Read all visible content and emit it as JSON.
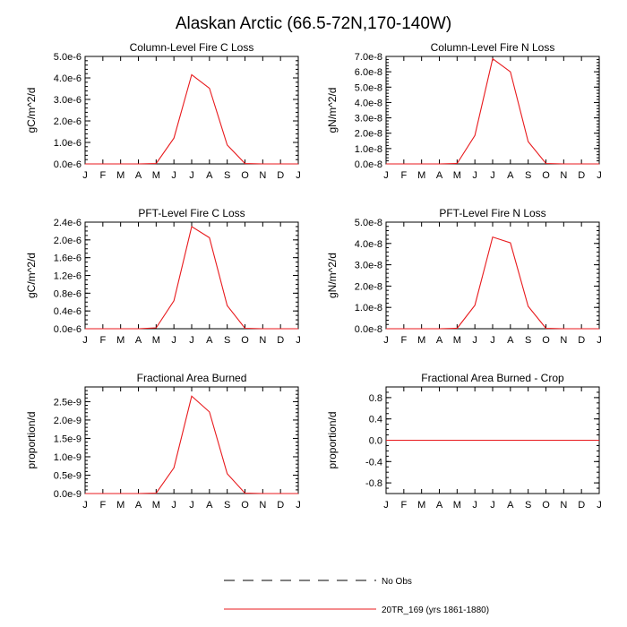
{
  "figure": {
    "title": "Alaskan Arctic (66.5-72N,170-140W)",
    "series_color": "#e8191c",
    "axis_color": "#000000"
  },
  "legend": {
    "items": [
      {
        "label": "No Obs",
        "style": "dashed",
        "color": "#000000"
      },
      {
        "label": "20TR_169 (yrs 1861-1880)",
        "style": "solid",
        "color": "#e8191c"
      }
    ]
  },
  "chart_data": [
    {
      "type": "line",
      "title": "Column-Level Fire C Loss",
      "ylabel": "gC/m^2/d",
      "xlabel": "",
      "categories": [
        "J",
        "F",
        "M",
        "A",
        "M",
        "J",
        "J",
        "A",
        "S",
        "O",
        "N",
        "D",
        "J"
      ],
      "ylim": [
        0,
        5e-06
      ],
      "yticks": [
        0,
        1e-06,
        2e-06,
        3e-06,
        4e-06,
        5e-06
      ],
      "yticklabels": [
        "0.0e-6",
        "1.0e-6",
        "2.0e-6",
        "3.0e-6",
        "4.0e-6",
        "5.0e-6"
      ],
      "yminor": 5,
      "series": [
        {
          "name": "20TR_169 (yrs 1861-1880)",
          "values": [
            0,
            0,
            0,
            0,
            2e-08,
            1.2e-06,
            4.15e-06,
            3.52e-06,
            8.8e-07,
            2e-08,
            0,
            0,
            0
          ]
        }
      ]
    },
    {
      "type": "line",
      "title": "Column-Level Fire N Loss",
      "ylabel": "gN/m^2/d",
      "xlabel": "",
      "categories": [
        "J",
        "F",
        "M",
        "A",
        "M",
        "J",
        "J",
        "A",
        "S",
        "O",
        "N",
        "D",
        "J"
      ],
      "ylim": [
        0,
        7e-08
      ],
      "yticks": [
        0,
        1e-08,
        2e-08,
        3e-08,
        4e-08,
        5e-08,
        6e-08,
        7e-08
      ],
      "yticklabels": [
        "0.0e-8",
        "1.0e-8",
        "2.0e-8",
        "3.0e-8",
        "4.0e-8",
        "5.0e-8",
        "6.0e-8",
        "7.0e-8"
      ],
      "yminor": 5,
      "series": [
        {
          "name": "20TR_169 (yrs 1861-1880)",
          "values": [
            0,
            0,
            0,
            0,
            3e-10,
            1.85e-08,
            6.85e-08,
            6e-08,
            1.45e-08,
            3e-10,
            0,
            0,
            0
          ]
        }
      ]
    },
    {
      "type": "line",
      "title": "PFT-Level Fire C Loss",
      "ylabel": "gC/m^2/d",
      "xlabel": "",
      "categories": [
        "J",
        "F",
        "M",
        "A",
        "M",
        "J",
        "J",
        "A",
        "S",
        "O",
        "N",
        "D",
        "J"
      ],
      "ylim": [
        0,
        2.4e-06
      ],
      "yticks": [
        0,
        4e-07,
        8e-07,
        1.2e-06,
        1.6e-06,
        2e-06,
        2.4e-06
      ],
      "yticklabels": [
        "0.0e-6",
        "0.4e-6",
        "0.8e-6",
        "1.2e-6",
        "1.6e-6",
        "2.0e-6",
        "2.4e-6"
      ],
      "yminor": 4,
      "series": [
        {
          "name": "20TR_169 (yrs 1861-1880)",
          "values": [
            0,
            0,
            0,
            0,
            2e-08,
            6.3e-07,
            2.3e-06,
            2.05e-06,
            5.2e-07,
            1e-08,
            0,
            0,
            0
          ]
        }
      ]
    },
    {
      "type": "line",
      "title": "PFT-Level Fire N Loss",
      "ylabel": "gN/m^2/d",
      "xlabel": "",
      "categories": [
        "J",
        "F",
        "M",
        "A",
        "M",
        "J",
        "J",
        "A",
        "S",
        "O",
        "N",
        "D",
        "J"
      ],
      "ylim": [
        0,
        5e-08
      ],
      "yticks": [
        0,
        1e-08,
        2e-08,
        3e-08,
        4e-08,
        5e-08
      ],
      "yticklabels": [
        "0.0e-8",
        "1.0e-8",
        "2.0e-8",
        "3.0e-8",
        "4.0e-8",
        "5.0e-8"
      ],
      "yminor": 5,
      "series": [
        {
          "name": "20TR_169 (yrs 1861-1880)",
          "values": [
            0,
            0,
            0,
            0,
            2e-10,
            1.1e-08,
            4.3e-08,
            4.03e-08,
            1.05e-08,
            2e-10,
            0,
            0,
            0
          ]
        }
      ]
    },
    {
      "type": "line",
      "title": "Fractional Area Burned",
      "ylabel": "proportion/d",
      "xlabel": "",
      "categories": [
        "J",
        "F",
        "M",
        "A",
        "M",
        "J",
        "J",
        "A",
        "S",
        "O",
        "N",
        "D",
        "J"
      ],
      "ylim": [
        0,
        2.9e-09
      ],
      "yticks": [
        0,
        5e-10,
        1e-09,
        1.5e-09,
        2e-09,
        2.5e-09
      ],
      "yticklabels": [
        "0.0e-9",
        "0.5e-9",
        "1.0e-9",
        "1.5e-9",
        "2.0e-9",
        "2.5e-9"
      ],
      "yminor": 5,
      "series": [
        {
          "name": "20TR_169 (yrs 1861-1880)",
          "values": [
            0,
            0,
            0,
            0,
            1e-11,
            7e-10,
            2.65e-09,
            2.22e-09,
            5.4e-10,
            1e-11,
            0,
            0,
            0
          ]
        }
      ]
    },
    {
      "type": "line",
      "title": "Fractional Area Burned - Crop",
      "ylabel": "proportion/d",
      "xlabel": "",
      "categories": [
        "J",
        "F",
        "M",
        "A",
        "M",
        "J",
        "J",
        "A",
        "S",
        "O",
        "N",
        "D",
        "J"
      ],
      "ylim": [
        -1.0,
        1.0
      ],
      "yticks": [
        -0.8,
        -0.4,
        0.0,
        0.4,
        0.8
      ],
      "yticklabels": [
        "-0.8",
        "-0.4",
        "0.0",
        "0.4",
        "0.8"
      ],
      "yminor": 4,
      "series": [
        {
          "name": "20TR_169 (yrs 1861-1880)",
          "values": [
            0,
            0,
            0,
            0,
            0,
            0,
            0,
            0,
            0,
            0,
            0,
            0,
            0
          ]
        }
      ]
    }
  ]
}
